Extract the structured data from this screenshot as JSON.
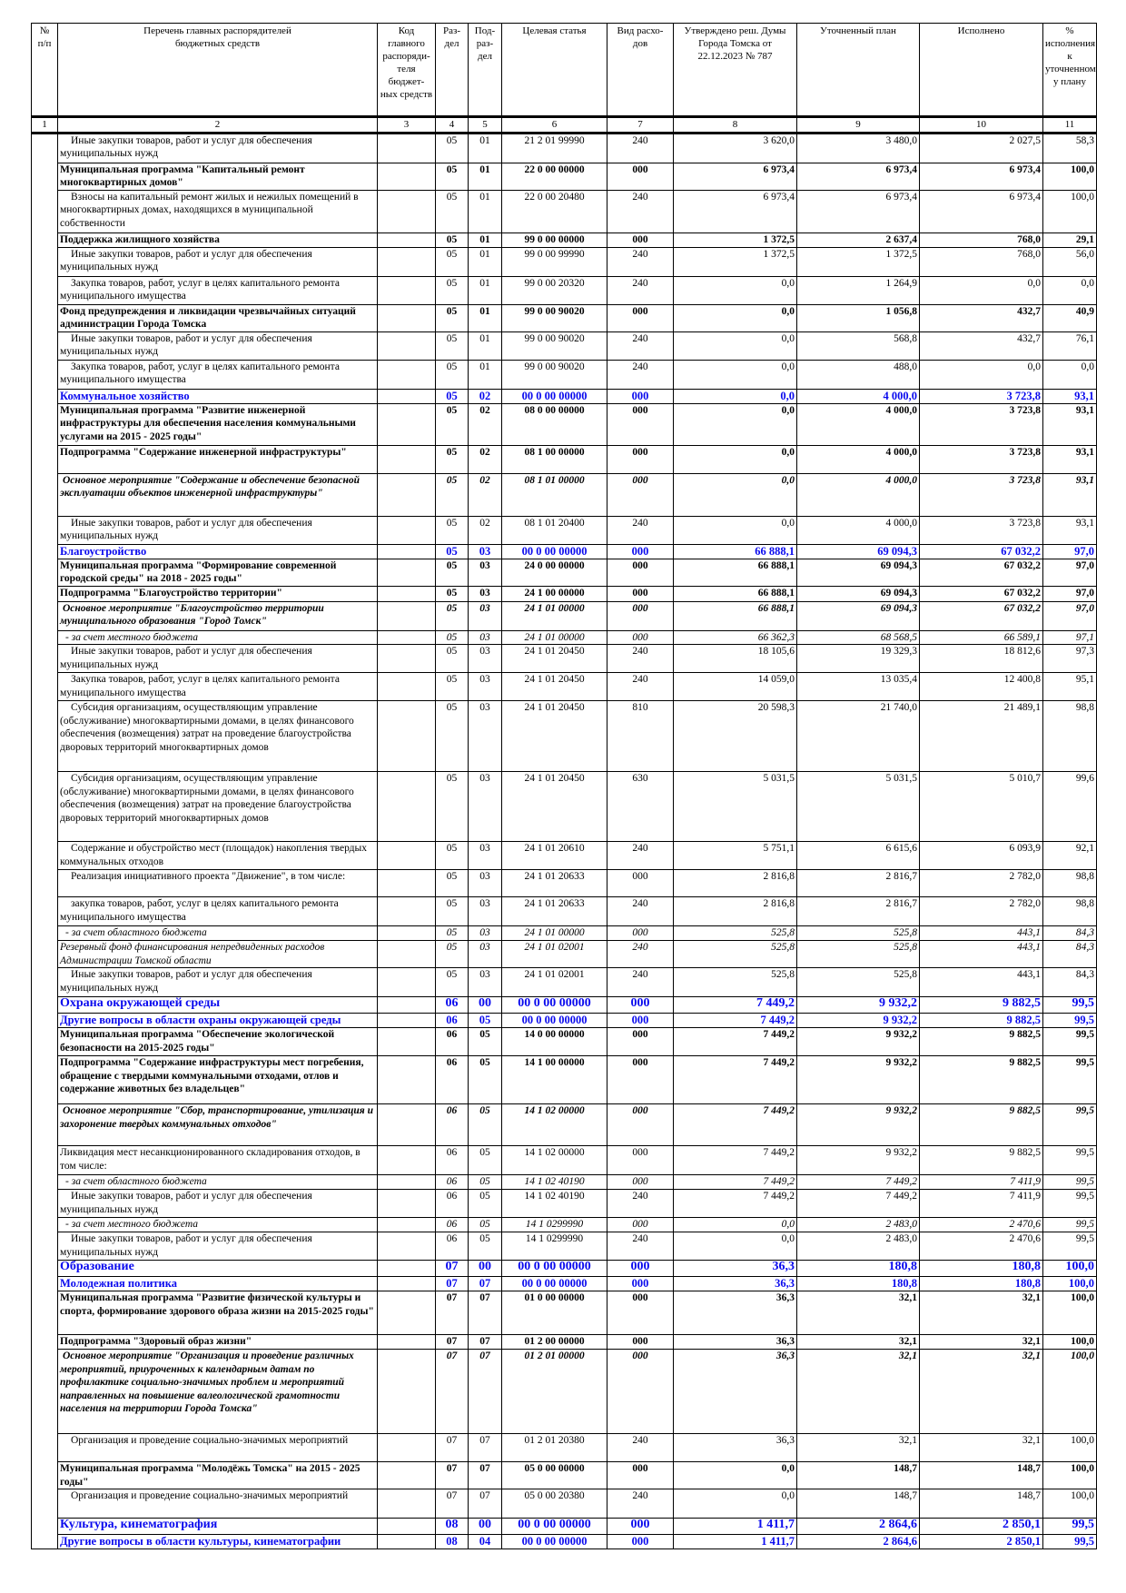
{
  "header": {
    "col1": "№\nп/п",
    "col2": "Перечень главных распорядителей\nбюджетных средств",
    "col3": "Код\nглавного\nраспоряди-\nтеля бюджет-\nных средств",
    "col4": "Раз-\nдел",
    "col5": "Под-\nраз-\nдел",
    "col6": "Целевая статья",
    "col7": "Вид расхо-\nдов",
    "col8": "Утверждено реш. Думы\nГорода Томска от\n22.12.2023  № 787",
    "col9": "Уточненный план",
    "col10": "Исполнено",
    "col11": "%\nисполнения\nк\nуточненном\nу плану"
  },
  "column_numbers": [
    "1",
    "2",
    "3",
    "4",
    "5",
    "6",
    "7",
    "8",
    "9",
    "10",
    "11"
  ],
  "colors": {
    "section": "#0a0aee",
    "text": "#000000"
  },
  "rows": [
    {
      "kind": "item",
      "name": "Иные закупки товаров, работ и услуг для обеспечения муниципальных нужд",
      "kod": "",
      "razdel": "05",
      "podrazdel": "01",
      "cs": "21 2 01 99990",
      "vr": "240",
      "approved": "3 620,0",
      "plan": "3 480,0",
      "done": "2 027,5",
      "pct": "58,3"
    },
    {
      "kind": "program",
      "name": "Муниципальная программа \"Капитальный ремонт многоквартирных домов\"",
      "kod": "",
      "razdel": "05",
      "podrazdel": "01",
      "cs": "22 0 00 00000",
      "vr": "000",
      "approved": "6 973,4",
      "plan": "6 973,4",
      "done": "6 973,4",
      "pct": "100,0"
    },
    {
      "kind": "item",
      "name": "Взносы на капитальный ремонт жилых и нежилых помещений в многоквартирных домах, находящихся в муниципальной собственности",
      "kod": "",
      "razdel": "05",
      "podrazdel": "01",
      "cs": "22 0 00 20480",
      "vr": "240",
      "approved": "6 973,4",
      "plan": "6 973,4",
      "done": "6 973,4",
      "pct": "100,0"
    },
    {
      "kind": "program",
      "name": "Поддержка жилищного хозяйства",
      "kod": "",
      "razdel": "05",
      "podrazdel": "01",
      "cs": "99 0 00 00000",
      "vr": "000",
      "approved": "1 372,5",
      "plan": "2 637,4",
      "done": "768,0",
      "pct": "29,1"
    },
    {
      "kind": "item",
      "name": "Иные закупки товаров, работ и услуг для обеспечения муниципальных нужд",
      "kod": "",
      "razdel": "05",
      "podrazdel": "01",
      "cs": "99 0 00 99990",
      "vr": "240",
      "approved": "1 372,5",
      "plan": "1 372,5",
      "done": "768,0",
      "pct": "56,0"
    },
    {
      "kind": "item",
      "name": "Закупка товаров, работ, услуг в целях капитального ремонта муниципального имущества",
      "kod": "",
      "razdel": "05",
      "podrazdel": "01",
      "cs": "99 0 00 20320",
      "vr": "240",
      "approved": "0,0",
      "plan": "1 264,9",
      "done": "0,0",
      "pct": "0,0"
    },
    {
      "kind": "program",
      "name": "Фонд предупреждения и ликвидации чрезвычайных ситуаций администрации Города Томска",
      "kod": "",
      "razdel": "05",
      "podrazdel": "01",
      "cs": "99 0 00 90020",
      "vr": "000",
      "approved": "0,0",
      "plan": "1 056,8",
      "done": "432,7",
      "pct": "40,9"
    },
    {
      "kind": "item",
      "name": "Иные закупки товаров, работ и услуг для обеспечения муниципальных нужд",
      "kod": "",
      "razdel": "05",
      "podrazdel": "01",
      "cs": "99 0 00 90020",
      "vr": "240",
      "approved": "0,0",
      "plan": "568,8",
      "done": "432,7",
      "pct": "76,1"
    },
    {
      "kind": "item",
      "name": "Закупка товаров, работ, услуг в целях капитального ремонта муниципального имущества",
      "kod": "",
      "razdel": "05",
      "podrazdel": "01",
      "cs": "99 0 00 90020",
      "vr": "240",
      "approved": "0,0",
      "plan": "488,0",
      "done": "0,0",
      "pct": "0,0"
    },
    {
      "kind": "section",
      "name": "Коммунальное хозяйство",
      "kod": "",
      "razdel": "05",
      "podrazdel": "02",
      "cs": "00 0 00 00000",
      "vr": "000",
      "approved": "0,0",
      "plan": "4 000,0",
      "done": "3 723,8",
      "pct": "93,1"
    },
    {
      "kind": "program",
      "name": "Муниципальная программа \"Развитие инженерной инфраструктуры для обеспечения населения коммунальными услугами на 2015 - 2025 годы\"",
      "kod": "",
      "razdel": "05",
      "podrazdel": "02",
      "cs": "08 0 00 00000",
      "vr": "000",
      "approved": "0,0",
      "plan": "4 000,0",
      "done": "3 723,8",
      "pct": "93,1"
    },
    {
      "kind": "program",
      "name": "Подпрограмма \"Содержание инженерной инфраструктуры\"",
      "kod": "",
      "razdel": "05",
      "podrazdel": "02",
      "cs": "08 1 00 00000",
      "vr": "000",
      "approved": "0,0",
      "plan": "4 000,0",
      "done": "3 723,8",
      "pct": "93,1"
    },
    {
      "kind": "event",
      "name": "Основное мероприятие \"Содержание и обеспечение безопасной эксплуатации объектов инженерной инфраструктуры\"",
      "kod": "",
      "razdel": "05",
      "podrazdel": "02",
      "cs": "08 1 01 00000",
      "vr": "000",
      "approved": "0,0",
      "plan": "4 000,0",
      "done": "3 723,8",
      "pct": "93,1"
    },
    {
      "kind": "item",
      "name": "Иные закупки товаров, работ и услуг для обеспечения муниципальных нужд",
      "kod": "",
      "razdel": "05",
      "podrazdel": "02",
      "cs": "08 1 01 20400",
      "vr": "240",
      "approved": "0,0",
      "plan": "4 000,0",
      "done": "3 723,8",
      "pct": "93,1"
    },
    {
      "kind": "section",
      "name": "Благоустройство",
      "kod": "",
      "razdel": "05",
      "podrazdel": "03",
      "cs": "00 0 00 00000",
      "vr": "000",
      "approved": "66 888,1",
      "plan": "69 094,3",
      "done": "67 032,2",
      "pct": "97,0"
    },
    {
      "kind": "program",
      "name": "Муниципальная программа \"Формирование современной городской среды\" на 2018 - 2025 годы\"",
      "kod": "",
      "razdel": "05",
      "podrazdel": "03",
      "cs": "24 0 00 00000",
      "vr": "000",
      "approved": "66 888,1",
      "plan": "69 094,3",
      "done": "67 032,2",
      "pct": "97,0"
    },
    {
      "kind": "program",
      "name": "Подпрограмма \"Благоустройство территории\"",
      "kod": "",
      "razdel": "05",
      "podrazdel": "03",
      "cs": "24 1 00 00000",
      "vr": "000",
      "approved": "66 888,1",
      "plan": "69 094,3",
      "done": "67 032,2",
      "pct": "97,0"
    },
    {
      "kind": "event",
      "name": "Основное мероприятие \"Благоустройство территории муниципального образования \"Город Томск\"",
      "kod": "",
      "razdel": "05",
      "podrazdel": "03",
      "cs": "24 1 01 00000",
      "vr": "000",
      "approved": "66 888,1",
      "plan": "69 094,3",
      "done": "67 032,2",
      "pct": "97,0"
    },
    {
      "kind": "note",
      "name": "- за счет местного бюджета",
      "kod": "",
      "razdel": "05",
      "podrazdel": "03",
      "cs": "24 1 01 00000",
      "vr": "000",
      "approved": "66 362,3",
      "plan": "68 568,5",
      "done": "66 589,1",
      "pct": "97,1"
    },
    {
      "kind": "item",
      "name": "Иные закупки товаров, работ и услуг для обеспечения муниципальных нужд",
      "kod": "",
      "razdel": "05",
      "podrazdel": "03",
      "cs": "24 1 01 20450",
      "vr": "240",
      "approved": "18 105,6",
      "plan": "19 329,3",
      "done": "18 812,6",
      "pct": "97,3"
    },
    {
      "kind": "item",
      "name": "Закупка товаров, работ, услуг в целях капитального ремонта муниципального имущества",
      "kod": "",
      "razdel": "05",
      "podrazdel": "03",
      "cs": "24 1 01 20450",
      "vr": "240",
      "approved": "14 059,0",
      "plan": "13 035,4",
      "done": "12 400,8",
      "pct": "95,1"
    },
    {
      "kind": "item",
      "name": "Субсидия организациям, осуществляющим управление (обслуживание) многоквартирными домами, в целях финансового обеспечения (возмещения) затрат на проведение благоустройства дворовых территорий многоквартирных домов",
      "kod": "",
      "razdel": "05",
      "podrazdel": "03",
      "cs": "24 1 01 20450",
      "vr": "810",
      "approved": "20 598,3",
      "plan": "21 740,0",
      "done": "21 489,1",
      "pct": "98,8"
    },
    {
      "kind": "item",
      "name": "Субсидия организациям, осуществляющим управление (обслуживание) многоквартирными домами, в целях финансового обеспечения (возмещения) затрат на проведение благоустройства дворовых территорий многоквартирных домов",
      "kod": "",
      "razdel": "05",
      "podrazdel": "03",
      "cs": "24 1 01 20450",
      "vr": "630",
      "approved": "5 031,5",
      "plan": "5 031,5",
      "done": "5 010,7",
      "pct": "99,6"
    },
    {
      "kind": "item",
      "name": "Содержание и обустройство мест (площадок) накопления твердых коммунальных отходов",
      "kod": "",
      "razdel": "05",
      "podrazdel": "03",
      "cs": "24 1 01 20610",
      "vr": "240",
      "approved": "5 751,1",
      "plan": "6 615,6",
      "done": "6 093,9",
      "pct": "92,1"
    },
    {
      "kind": "item",
      "name": "Реализация инициативного проекта \"Движение\", в том числе:",
      "kod": "",
      "razdel": "05",
      "podrazdel": "03",
      "cs": "24 1 01 20633",
      "vr": "000",
      "approved": "2 816,8",
      "plan": "2 816,7",
      "done": "2 782,0",
      "pct": "98,8"
    },
    {
      "kind": "item",
      "name": "закупка товаров, работ, услуг в целях капитального ремонта муниципального имущества",
      "kod": "",
      "razdel": "05",
      "podrazdel": "03",
      "cs": "24 1 01 20633",
      "vr": "240",
      "approved": "2 816,8",
      "plan": "2 816,7",
      "done": "2 782,0",
      "pct": "98,8"
    },
    {
      "kind": "note",
      "name": "- за счет областного бюджета",
      "kod": "",
      "razdel": "05",
      "podrazdel": "03",
      "cs": "24 1 01 00000",
      "vr": "000",
      "approved": "525,8",
      "plan": "525,8",
      "done": "443,1",
      "pct": "84,3"
    },
    {
      "kind": "reserve",
      "name": "Резервный фонд финансирования непредвиденных расходов Администрации Томской области",
      "kod": "",
      "razdel": "05",
      "podrazdel": "03",
      "cs": "24 1 01 02001",
      "vr": "240",
      "approved": "525,8",
      "plan": "525,8",
      "done": "443,1",
      "pct": "84,3"
    },
    {
      "kind": "item",
      "name": "Иные закупки товаров, работ и услуг для обеспечения муниципальных нужд",
      "kod": "",
      "razdel": "05",
      "podrazdel": "03",
      "cs": "24 1 01 02001",
      "vr": "240",
      "approved": "525,8",
      "plan": "525,8",
      "done": "443,1",
      "pct": "84,3"
    },
    {
      "kind": "bigsection",
      "name": "Охрана окружающей среды",
      "kod": "",
      "razdel": "06",
      "podrazdel": "00",
      "cs": "00 0 00 00000",
      "vr": "000",
      "approved": "7 449,2",
      "plan": "9 932,2",
      "done": "9 882,5",
      "pct": "99,5"
    },
    {
      "kind": "section",
      "name": "Другие вопросы в области охраны окружающей среды",
      "kod": "",
      "razdel": "06",
      "podrazdel": "05",
      "cs": "00 0 00 00000",
      "vr": "000",
      "approved": "7 449,2",
      "plan": "9 932,2",
      "done": "9 882,5",
      "pct": "99,5"
    },
    {
      "kind": "program",
      "name": "Муниципальная программа \"Обеспечение экологической безопасности на 2015-2025 годы\"",
      "kod": "",
      "razdel": "06",
      "podrazdel": "05",
      "cs": "14 0 00 00000",
      "vr": "000",
      "approved": "7 449,2",
      "plan": "9 932,2",
      "done": "9 882,5",
      "pct": "99,5"
    },
    {
      "kind": "program",
      "name": "Подпрограмма \"Содержание инфраструктуры мест погребения, обращение с твердыми коммунальными отходами, отлов и содержание животных без владельцев\"",
      "kod": "",
      "razdel": "06",
      "podrazdel": "05",
      "cs": "14 1 00 00000",
      "vr": "000",
      "approved": "7 449,2",
      "plan": "9 932,2",
      "done": "9 882,5",
      "pct": "99,5"
    },
    {
      "kind": "event",
      "name": "Основное мероприятие \"Сбор, транспортирование, утилизация и захоронение твердых коммунальных отходов\"",
      "kod": "",
      "razdel": "06",
      "podrazdel": "05",
      "cs": "14 1 02 00000",
      "vr": "000",
      "approved": "7 449,2",
      "plan": "9 932,2",
      "done": "9 882,5",
      "pct": "99,5"
    },
    {
      "kind": "item-plain",
      "name": "Ликвидация мест несанкционированного складирования отходов, в том числе:",
      "kod": "",
      "razdel": "06",
      "podrazdel": "05",
      "cs": "14 1 02 00000",
      "vr": "000",
      "approved": "7 449,2",
      "plan": "9 932,2",
      "done": "9 882,5",
      "pct": "99,5"
    },
    {
      "kind": "note",
      "name": "- за счет областного бюджета",
      "kod": "",
      "razdel": "06",
      "podrazdel": "05",
      "cs": "14 1 02 40190",
      "vr": "000",
      "approved": "7 449,2",
      "plan": "7 449,2",
      "done": "7 411,9",
      "pct": "99,5"
    },
    {
      "kind": "item",
      "name": "Иные закупки товаров, работ и услуг для обеспечения муниципальных нужд",
      "kod": "",
      "razdel": "06",
      "podrazdel": "05",
      "cs": "14 1 02 40190",
      "vr": "240",
      "approved": "7 449,2",
      "plan": "7 449,2",
      "done": "7 411,9",
      "pct": "99,5"
    },
    {
      "kind": "note",
      "name": "- за счет местного бюджета",
      "kod": "",
      "razdel": "06",
      "podrazdel": "05",
      "cs": "14 1 0299990",
      "vr": "000",
      "approved": "0,0",
      "plan": "2 483,0",
      "done": "2 470,6",
      "pct": "99,5"
    },
    {
      "kind": "item",
      "name": "Иные закупки товаров, работ и услуг для обеспечения муниципальных нужд",
      "kod": "",
      "razdel": "06",
      "podrazdel": "05",
      "cs": "14 1 0299990",
      "vr": "240",
      "approved": "0,0",
      "plan": "2 483,0",
      "done": "2 470,6",
      "pct": "99,5"
    },
    {
      "kind": "bigsection",
      "name": "Образование",
      "kod": "",
      "razdel": "07",
      "podrazdel": "00",
      "cs": "00 0 00 00000",
      "vr": "000",
      "approved": "36,3",
      "plan": "180,8",
      "done": "180,8",
      "pct": "100,0"
    },
    {
      "kind": "section",
      "name": "Молодежная политика",
      "kod": "",
      "razdel": "07",
      "podrazdel": "07",
      "cs": "00 0 00 00000",
      "vr": "000",
      "approved": "36,3",
      "plan": "180,8",
      "done": "180,8",
      "pct": "100,0"
    },
    {
      "kind": "program",
      "name": "Муниципальная программа \"Развитие физической культуры и спорта, формирование здорового образа жизни на 2015-2025 годы\"",
      "kod": "",
      "razdel": "07",
      "podrazdel": "07",
      "cs": "01 0 00 00000",
      "vr": "000",
      "approved": "36,3",
      "plan": "32,1",
      "done": "32,1",
      "pct": "100,0"
    },
    {
      "kind": "program",
      "name": "Подпрограмма \"Здоровый образ жизни\"",
      "kod": "",
      "razdel": "07",
      "podrazdel": "07",
      "cs": "01 2 00 00000",
      "vr": "000",
      "approved": "36,3",
      "plan": "32,1",
      "done": "32,1",
      "pct": "100,0"
    },
    {
      "kind": "event",
      "name": "Основное мероприятие \"Организация и проведение различных мероприятий, приуроченных к календарным датам по профилактике социально-значимых проблем и мероприятий направленных на повышение валеологической грамотности населения на территории Города Томска\"",
      "kod": "",
      "razdel": "07",
      "podrazdel": "07",
      "cs": "01 2 01 00000",
      "vr": "000",
      "approved": "36,3",
      "plan": "32,1",
      "done": "32,1",
      "pct": "100,0"
    },
    {
      "kind": "item",
      "name": "Организация и проведение социально-значимых мероприятий",
      "kod": "",
      "razdel": "07",
      "podrazdel": "07",
      "cs": "01 2 01 20380",
      "vr": "240",
      "approved": "36,3",
      "plan": "32,1",
      "done": "32,1",
      "pct": "100,0"
    },
    {
      "kind": "program",
      "name": "Муниципальная программа \"Молодёжь Томска\" на 2015 - 2025 годы\"",
      "kod": "",
      "razdel": "07",
      "podrazdel": "07",
      "cs": "05 0 00 00000",
      "vr": "000",
      "approved": "0,0",
      "plan": "148,7",
      "done": "148,7",
      "pct": "100,0"
    },
    {
      "kind": "item",
      "name": "Организация и проведение социально-значимых мероприятий",
      "kod": "",
      "razdel": "07",
      "podrazdel": "07",
      "cs": "05 0 00 20380",
      "vr": "240",
      "approved": "0,0",
      "plan": "148,7",
      "done": "148,7",
      "pct": "100,0"
    },
    {
      "kind": "bigsection",
      "name": "Культура, кинематография",
      "kod": "",
      "razdel": "08",
      "podrazdel": "00",
      "cs": "00 0 00 00000",
      "vr": "000",
      "approved": "1 411,7",
      "plan": "2 864,6",
      "done": "2 850,1",
      "pct": "99,5"
    },
    {
      "kind": "section",
      "name": "Другие вопросы в области культуры, кинематографии",
      "kod": "",
      "razdel": "08",
      "podrazdel": "04",
      "cs": "00 0 00 00000",
      "vr": "000",
      "approved": "1 411,7",
      "plan": "2 864,6",
      "done": "2 850,1",
      "pct": "99,5"
    }
  ]
}
